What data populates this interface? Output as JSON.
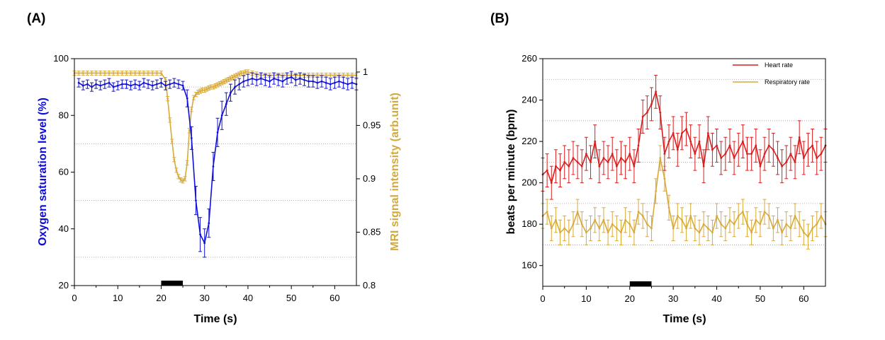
{
  "chart_data": [
    {
      "panel_label": "(A)",
      "type": "line",
      "xlabel": "Time (s)",
      "xlim": [
        0,
        65
      ],
      "x_ticks": [
        0,
        10,
        20,
        30,
        40,
        50,
        60
      ],
      "y_left": {
        "label": "Oxygen saturation level (%)",
        "lim": [
          20,
          100
        ],
        "ticks": [
          20,
          40,
          60,
          80,
          100
        ],
        "color": "#0a0adc"
      },
      "y_right": {
        "label": "MRI signal intensity (arb.unit)",
        "lim": [
          0.8,
          1.0125
        ],
        "ticks": [
          0.8,
          0.85,
          0.9,
          0.95,
          1
        ],
        "tick_labels": [
          "0.8",
          "0.85",
          "0.9",
          "0.95",
          "1"
        ],
        "color": "#d2aa3c"
      },
      "stimulus_bar": [
        20,
        25
      ],
      "gridlines_y_left": [
        30,
        50,
        70,
        90
      ],
      "series": [
        {
          "name": "Oxygen saturation level",
          "axis": "left",
          "color": "#1010d8",
          "x": [
            1,
            2,
            3,
            4,
            5,
            6,
            7,
            8,
            9,
            10,
            11,
            12,
            13,
            14,
            15,
            16,
            17,
            18,
            19,
            20,
            21,
            22,
            23,
            24,
            25,
            26,
            27,
            28,
            29,
            30,
            31,
            32,
            33,
            34,
            35,
            36,
            37,
            38,
            39,
            40,
            41,
            42,
            43,
            44,
            45,
            46,
            47,
            48,
            49,
            50,
            51,
            52,
            53,
            54,
            55,
            56,
            57,
            58,
            59,
            60,
            61,
            62,
            63,
            64,
            65
          ],
          "y": [
            91.5,
            90.5,
            91,
            90,
            91,
            90.5,
            91,
            91.5,
            90,
            90.5,
            91,
            91,
            90.5,
            91,
            90.5,
            91.5,
            91,
            90.5,
            91,
            91.5,
            90.5,
            91,
            91.5,
            91,
            90.5,
            86,
            72,
            50,
            38,
            35,
            42,
            62,
            74,
            80,
            84,
            88,
            90,
            91,
            92,
            92.5,
            93,
            92.5,
            93,
            92.5,
            92,
            93,
            92.5,
            92,
            93,
            93.5,
            92.5,
            93,
            92.5,
            92,
            92,
            91.5,
            92,
            91.5,
            91,
            91.5,
            92,
            91.5,
            91,
            91.5,
            91
          ],
          "err": [
            1.5,
            1.5,
            1.5,
            1.5,
            1.5,
            1.5,
            1.5,
            1.5,
            1.5,
            1.5,
            1.5,
            1.5,
            1.5,
            1.5,
            1.5,
            1.5,
            1.5,
            1.5,
            1.5,
            1.5,
            1.5,
            1.5,
            1.5,
            1.5,
            1.5,
            3,
            4,
            5,
            6,
            5,
            5,
            5,
            5,
            5,
            4,
            3,
            2.5,
            2,
            2,
            2,
            2,
            2,
            2,
            2,
            2,
            2,
            2,
            2,
            2,
            2,
            2,
            2,
            2,
            2,
            2,
            2,
            2,
            2,
            2,
            2,
            2,
            2,
            2,
            2,
            2
          ]
        },
        {
          "name": "MRI signal intensity",
          "axis": "right",
          "color": "#d8aa3a",
          "x": [
            0,
            1,
            2,
            3,
            4,
            5,
            6,
            7,
            8,
            9,
            10,
            11,
            12,
            13,
            14,
            15,
            16,
            17,
            18,
            19,
            20,
            21,
            21.5,
            22,
            22.5,
            23,
            23.5,
            24,
            24.5,
            25,
            25.5,
            26,
            26.5,
            27,
            27.5,
            28,
            28.5,
            29,
            29.5,
            30,
            30.5,
            31,
            31.5,
            32,
            32.5,
            33,
            33.5,
            34,
            34.5,
            35,
            35.5,
            36,
            36.5,
            37,
            37.5,
            38,
            38.5,
            39,
            39.5,
            40,
            41,
            42,
            43,
            44,
            45,
            46,
            47,
            48,
            49,
            50,
            51,
            52,
            53,
            54,
            55,
            56,
            57,
            58,
            59,
            60,
            61,
            62,
            63,
            64,
            65
          ],
          "y": [
            0.999,
            0.999,
            0.999,
            0.999,
            0.999,
            0.999,
            0.999,
            0.999,
            0.999,
            0.999,
            0.999,
            0.999,
            0.999,
            0.999,
            0.999,
            0.999,
            0.999,
            0.999,
            0.999,
            0.999,
            0.999,
            0.993,
            0.975,
            0.955,
            0.935,
            0.918,
            0.908,
            0.902,
            0.899,
            0.898,
            0.9,
            0.915,
            0.945,
            0.965,
            0.976,
            0.979,
            0.981,
            0.982,
            0.983,
            0.983,
            0.984,
            0.985,
            0.986,
            0.986,
            0.987,
            0.988,
            0.989,
            0.99,
            0.991,
            0.992,
            0.993,
            0.994,
            0.995,
            0.996,
            0.997,
            0.998,
            0.999,
            0.999,
            1.0,
            1.0,
            0.999,
            0.998,
            0.997,
            0.997,
            0.997,
            0.997,
            0.997,
            0.997,
            0.997,
            0.997,
            0.997,
            0.997,
            0.997,
            0.997,
            0.997,
            0.997,
            0.997,
            0.997,
            0.997,
            0.997,
            0.997,
            0.997,
            0.997,
            0.997,
            0.997
          ],
          "err": 0.002
        }
      ]
    },
    {
      "panel_label": "(B)",
      "type": "line",
      "xlabel": "Time (s)",
      "ylabel": "beats per minute (bpm)",
      "xlim": [
        0,
        65
      ],
      "ylim": [
        150,
        260
      ],
      "x_ticks": [
        0,
        10,
        20,
        30,
        40,
        50,
        60
      ],
      "y_ticks": [
        160,
        180,
        200,
        220,
        240,
        260
      ],
      "gridlines_y": [
        170,
        190,
        210,
        230,
        250
      ],
      "stimulus_bar": [
        20,
        25
      ],
      "legend_position": "top-right",
      "series": [
        {
          "name": "Heart rate",
          "color": "#d81e1e",
          "x": [
            0,
            1,
            2,
            3,
            4,
            5,
            6,
            7,
            8,
            9,
            10,
            11,
            12,
            13,
            14,
            15,
            16,
            17,
            18,
            19,
            20,
            21,
            22,
            23,
            24,
            25,
            26,
            27,
            28,
            29,
            30,
            31,
            32,
            33,
            34,
            35,
            36,
            37,
            38,
            39,
            40,
            41,
            42,
            43,
            44,
            45,
            46,
            47,
            48,
            49,
            50,
            51,
            52,
            53,
            54,
            55,
            56,
            57,
            58,
            59,
            60,
            61,
            62,
            63,
            64,
            65
          ],
          "y": [
            204,
            206,
            200,
            208,
            206,
            210,
            208,
            212,
            210,
            208,
            214,
            210,
            220,
            208,
            212,
            210,
            214,
            208,
            212,
            210,
            214,
            208,
            218,
            232,
            234,
            238,
            244,
            234,
            214,
            220,
            224,
            216,
            224,
            226,
            220,
            214,
            220,
            208,
            224,
            216,
            218,
            212,
            214,
            218,
            212,
            216,
            220,
            214,
            214,
            218,
            208,
            214,
            218,
            216,
            212,
            208,
            210,
            214,
            210,
            222,
            212,
            216,
            218,
            212,
            214,
            218
          ],
          "err": 8
        },
        {
          "name": "Respiratory rate",
          "color": "#d8aa3a",
          "x": [
            0,
            1,
            2,
            3,
            4,
            5,
            6,
            7,
            8,
            9,
            10,
            11,
            12,
            13,
            14,
            15,
            16,
            17,
            18,
            19,
            20,
            21,
            22,
            23,
            24,
            25,
            26,
            27,
            28,
            29,
            30,
            31,
            32,
            33,
            34,
            35,
            36,
            37,
            38,
            39,
            40,
            41,
            42,
            43,
            44,
            45,
            46,
            47,
            48,
            49,
            50,
            51,
            52,
            53,
            54,
            55,
            56,
            57,
            58,
            59,
            60,
            61,
            62,
            63,
            64,
            65
          ],
          "y": [
            184,
            186,
            178,
            182,
            176,
            178,
            176,
            180,
            186,
            180,
            176,
            178,
            182,
            178,
            182,
            176,
            180,
            178,
            176,
            182,
            180,
            176,
            186,
            184,
            180,
            178,
            196,
            212,
            202,
            188,
            178,
            184,
            182,
            178,
            184,
            178,
            176,
            180,
            178,
            176,
            184,
            180,
            178,
            182,
            180,
            184,
            186,
            180,
            176,
            182,
            180,
            186,
            184,
            178,
            182,
            176,
            180,
            178,
            184,
            180,
            176,
            174,
            178,
            180,
            184,
            180
          ],
          "err": 6
        }
      ]
    }
  ]
}
